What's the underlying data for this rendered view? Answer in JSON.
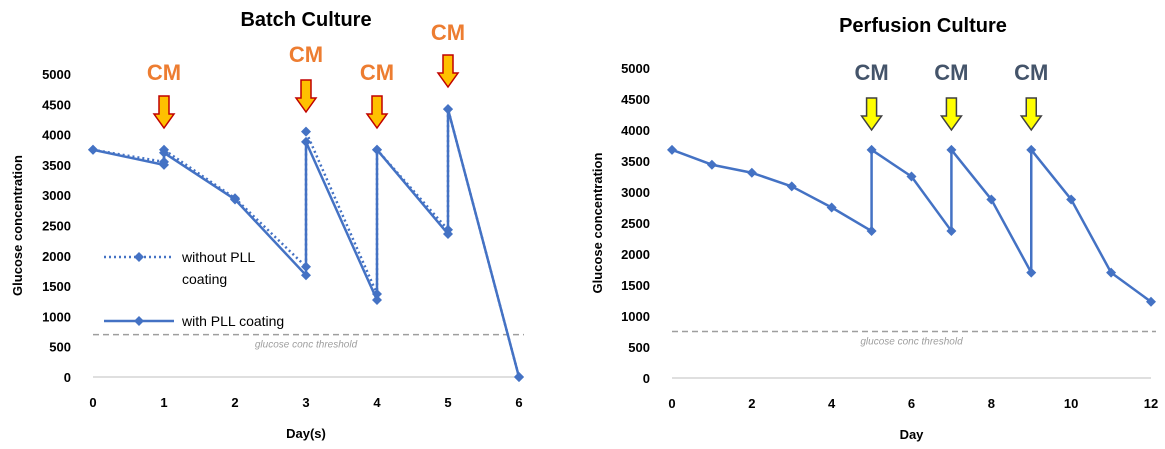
{
  "chart_data": [
    {
      "type": "line",
      "title": "Batch Culture",
      "xlabel": "Day(s)",
      "ylabel": "Glucose concentration",
      "xlim": [
        0,
        6
      ],
      "ylim": [
        0,
        5000
      ],
      "xticks": [
        "0",
        "1",
        "2",
        "3",
        "4",
        "5",
        "6"
      ],
      "yticks": [
        "0",
        "500",
        "1000",
        "1500",
        "2000",
        "2500",
        "3000",
        "3500",
        "4000",
        "4500",
        "5000"
      ],
      "grid": false,
      "legend_position": "left",
      "series": [
        {
          "name": "without PLL coating",
          "style": "dotted",
          "color": "#4472C4",
          "points": [
            [
              0,
              3750
            ],
            [
              1,
              3550
            ],
            [
              1,
              3750
            ],
            [
              2,
              2950
            ],
            [
              3,
              1820
            ],
            [
              3,
              4050
            ],
            [
              4,
              1370
            ],
            [
              4,
              3750
            ],
            [
              5,
              2430
            ],
            [
              5,
              4420
            ],
            [
              6,
              0
            ]
          ]
        },
        {
          "name": "with PLL coating",
          "style": "solid",
          "color": "#4472C4",
          "points": [
            [
              0,
              3750
            ],
            [
              1,
              3500
            ],
            [
              1,
              3700
            ],
            [
              2,
              2930
            ],
            [
              3,
              1680
            ],
            [
              3,
              3880
            ],
            [
              4,
              1270
            ],
            [
              4,
              3750
            ],
            [
              5,
              2360
            ],
            [
              5,
              4420
            ],
            [
              6,
              0
            ]
          ]
        }
      ],
      "threshold": {
        "value": 700,
        "label": "glucose conc threshold",
        "color": "#9e9e9e"
      },
      "annotations": [
        {
          "text": "CM",
          "x": 1,
          "color": "#ED7D31"
        },
        {
          "text": "CM",
          "x": 3,
          "color": "#ED7D31"
        },
        {
          "text": "CM",
          "x": 4,
          "color": "#ED7D31"
        },
        {
          "text": "CM",
          "x": 5,
          "color": "#ED7D31"
        }
      ]
    },
    {
      "type": "line",
      "title": "Perfusion Culture",
      "xlabel": "Day",
      "ylabel": "Glucose concentration",
      "xlim": [
        0,
        12
      ],
      "ylim": [
        0,
        5000
      ],
      "xticks": [
        "0",
        "2",
        "4",
        "6",
        "8",
        "10",
        "12"
      ],
      "yticks": [
        "0",
        "500",
        "1000",
        "1500",
        "2000",
        "2500",
        "3000",
        "3500",
        "4000",
        "4500",
        "5000"
      ],
      "grid": false,
      "series": [
        {
          "style": "solid",
          "color": "#4472C4",
          "points": [
            [
              0,
              3680
            ],
            [
              1,
              3440
            ],
            [
              2,
              3310
            ],
            [
              3,
              3090
            ],
            [
              4,
              2750
            ],
            [
              5,
              2370
            ],
            [
              5,
              3680
            ],
            [
              6,
              3250
            ],
            [
              7,
              2370
            ],
            [
              7,
              3680
            ],
            [
              8,
              2880
            ],
            [
              9,
              1700
            ],
            [
              9,
              3680
            ],
            [
              10,
              2880
            ],
            [
              11,
              1700
            ],
            [
              12,
              1230
            ]
          ]
        }
      ],
      "threshold": {
        "value": 750,
        "label": "glucose conc threshold",
        "color": "#9e9e9e"
      },
      "annotations": [
        {
          "text": "CM",
          "x": 5,
          "color": "#44546A"
        },
        {
          "text": "CM",
          "x": 7,
          "color": "#44546A"
        },
        {
          "text": "CM",
          "x": 9,
          "color": "#44546A"
        }
      ]
    }
  ]
}
